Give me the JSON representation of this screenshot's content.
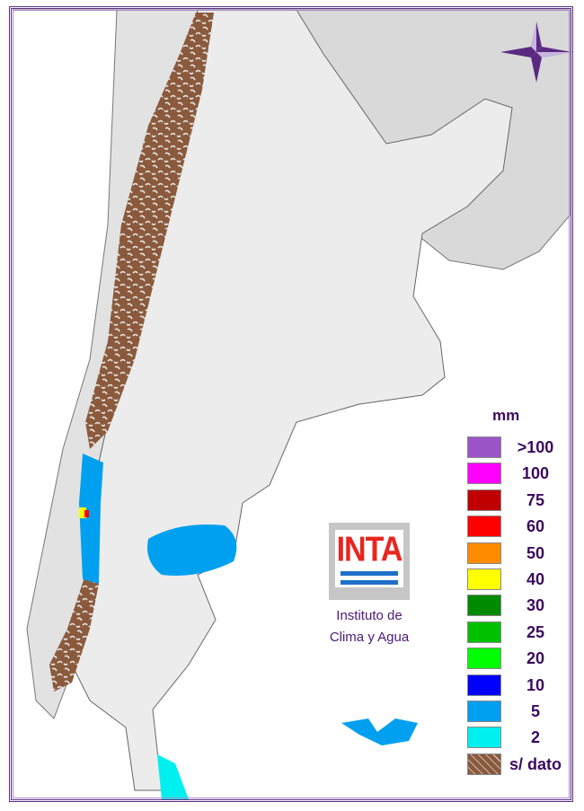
{
  "legend": {
    "unit": "mm",
    "items": [
      {
        "label": ">100",
        "color": "#9b55c9"
      },
      {
        "label": "100",
        "color": "#ff00ff"
      },
      {
        "label": "75",
        "color": "#c00000"
      },
      {
        "label": "60",
        "color": "#ff0000"
      },
      {
        "label": "50",
        "color": "#ff8c00"
      },
      {
        "label": "40",
        "color": "#ffff00"
      },
      {
        "label": "30",
        "color": "#008a00"
      },
      {
        "label": "25",
        "color": "#00c000"
      },
      {
        "label": "20",
        "color": "#00ff00"
      },
      {
        "label": "10",
        "color": "#0000ff"
      },
      {
        "label": "5",
        "color": "#00a0f0"
      },
      {
        "label": "2",
        "color": "#00f0f0"
      },
      {
        "label": "s/ dato",
        "color": "#8b5a3c"
      }
    ]
  },
  "logo": {
    "acronym": "INTA",
    "line1": "Instituto de",
    "line2": "Clima y Agua"
  },
  "icons": {
    "compass": "compass-rose-icon"
  }
}
